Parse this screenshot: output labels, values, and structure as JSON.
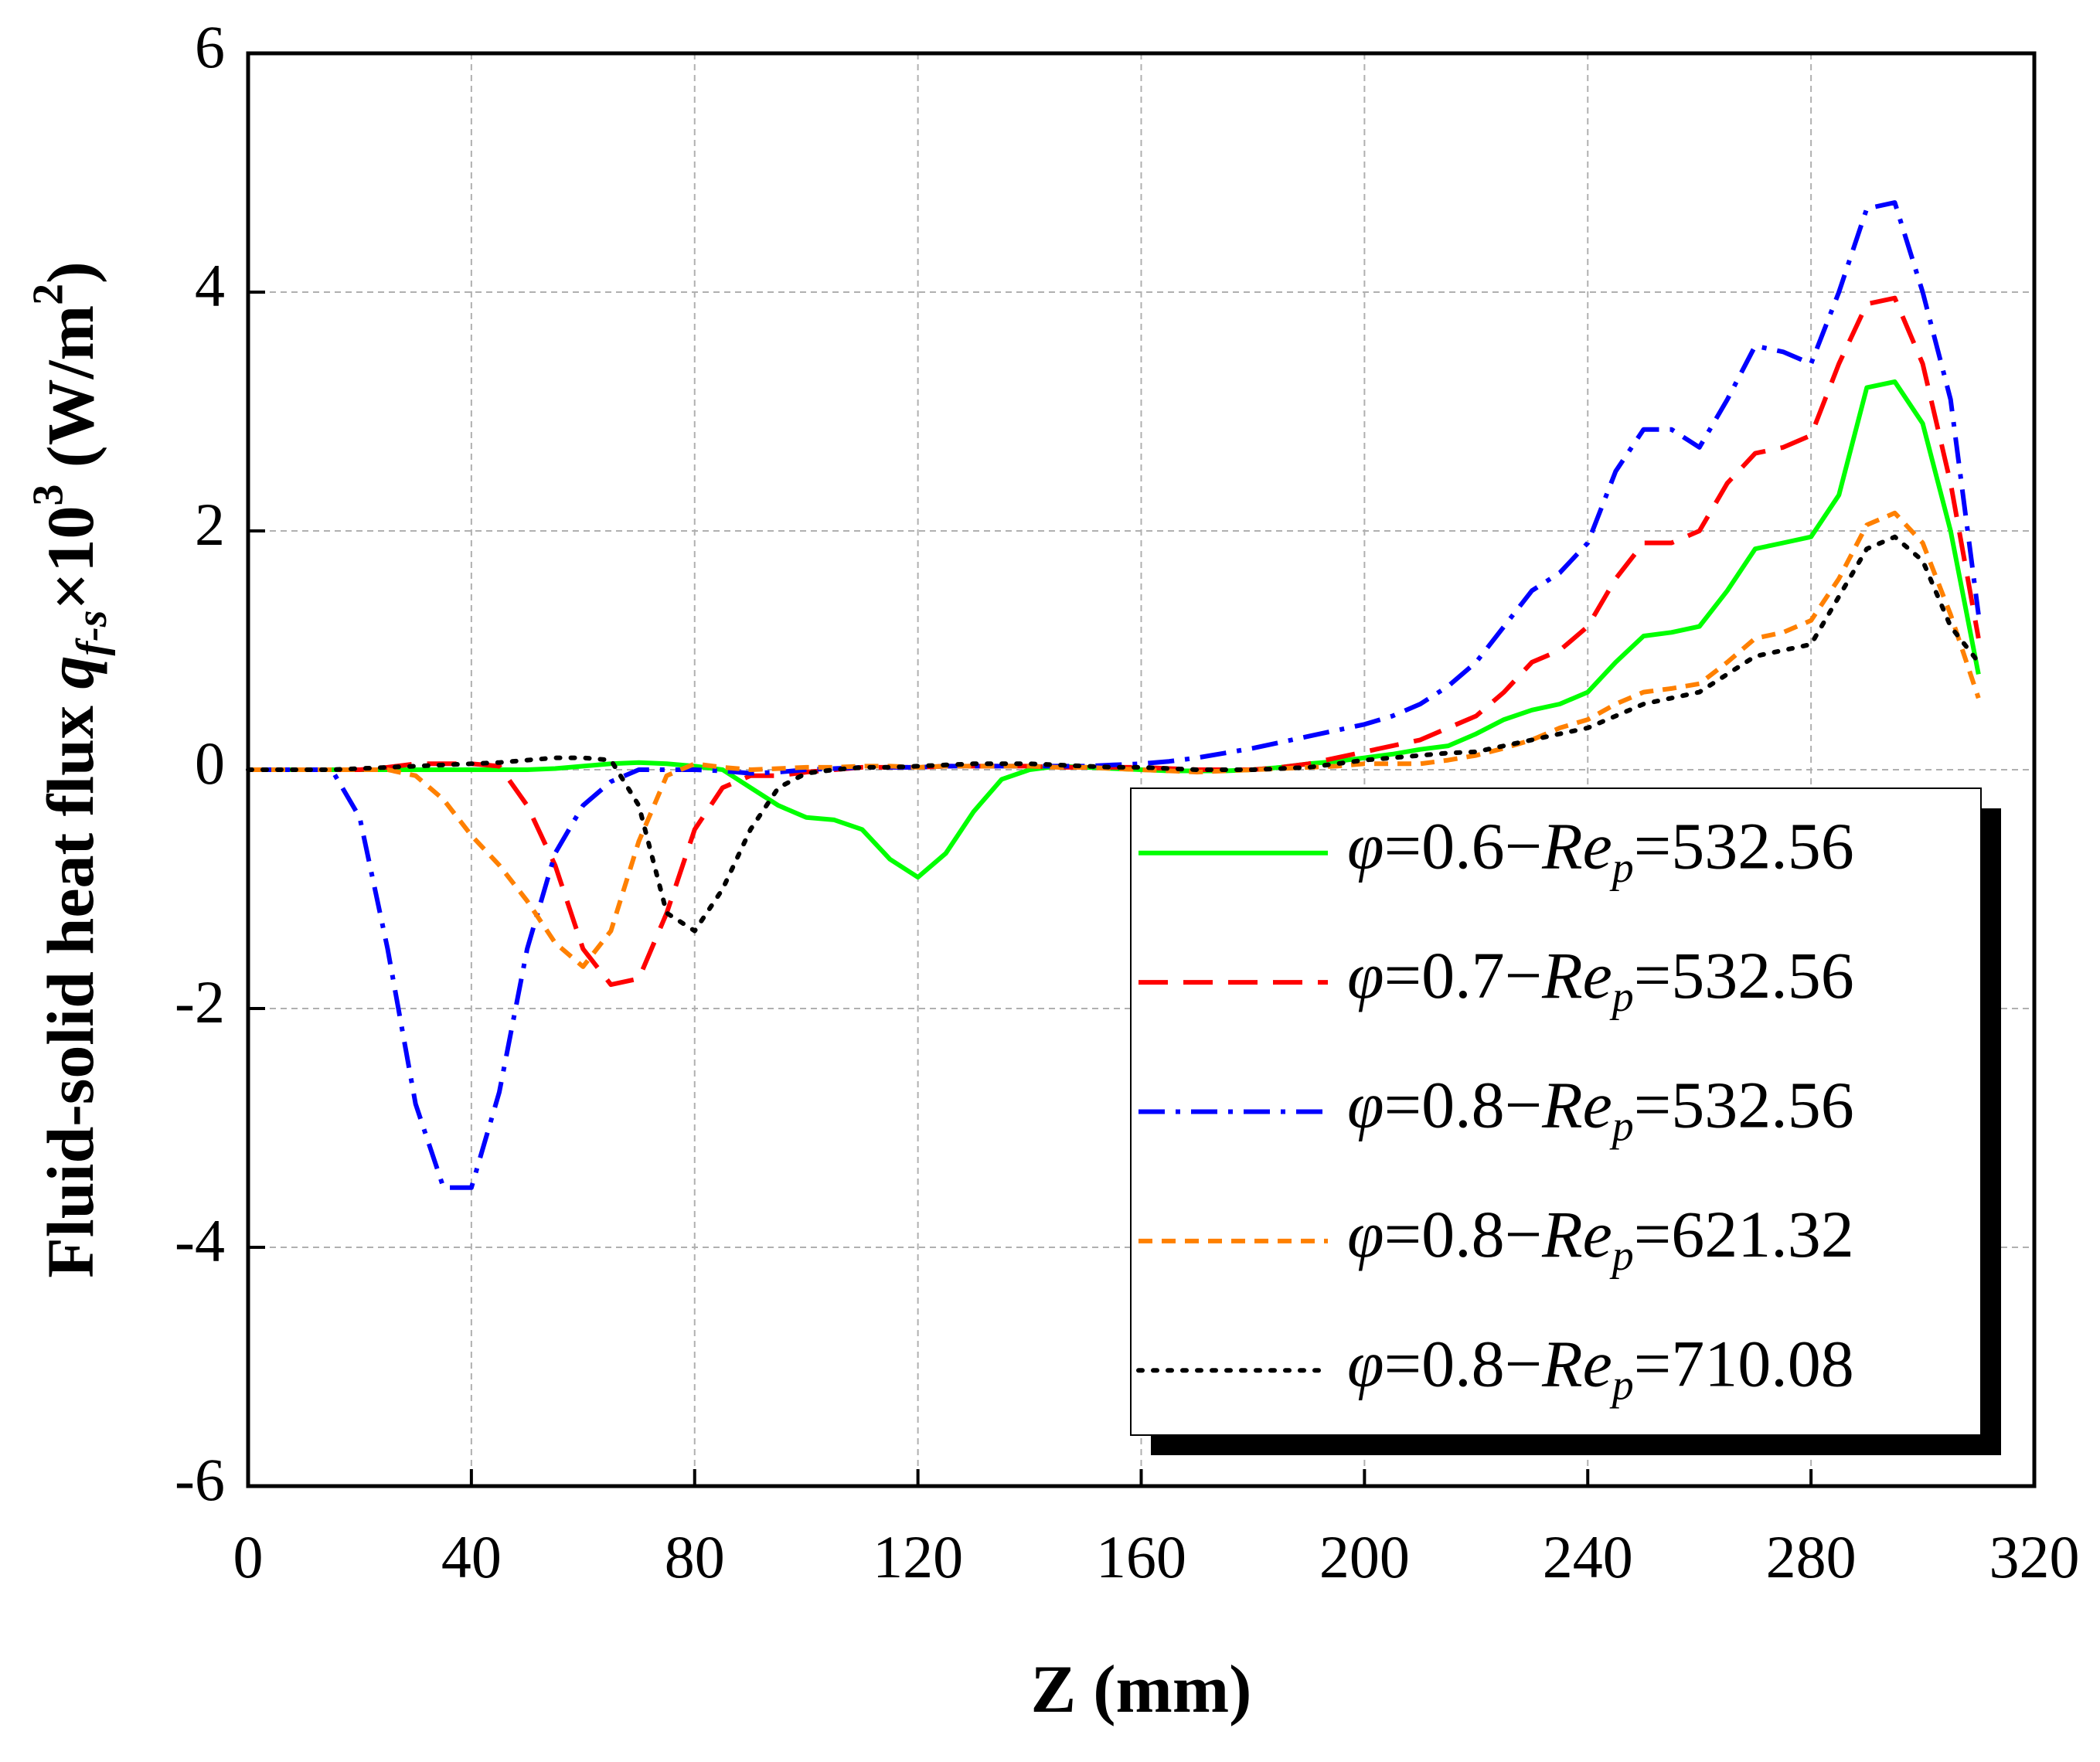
{
  "chart_data": {
    "type": "line",
    "xlabel": "Z (mm)",
    "ylabel": "Fluid-solid heat flux q_{f-s}×10^{3} (W/m^{2})",
    "x": [
      0,
      5,
      10,
      15,
      20,
      25,
      30,
      35,
      40,
      45,
      50,
      55,
      60,
      65,
      70,
      75,
      80,
      85,
      90,
      95,
      100,
      105,
      110,
      115,
      120,
      125,
      130,
      135,
      140,
      145,
      150,
      155,
      160,
      165,
      170,
      175,
      180,
      185,
      190,
      195,
      200,
      205,
      210,
      215,
      220,
      225,
      230,
      235,
      240,
      245,
      250,
      255,
      260,
      265,
      270,
      275,
      280,
      285,
      290,
      295,
      300,
      305,
      310
    ],
    "series": [
      {
        "name": "φ=0.6−Re_{p}=532.56",
        "color": "#00ff00",
        "dash": "solid",
        "values": [
          0,
          0,
          0,
          0,
          0,
          0,
          0,
          0,
          0,
          0,
          0,
          0.01,
          0.03,
          0.05,
          0.06,
          0.05,
          0.03,
          0,
          -0.15,
          -0.3,
          -0.4,
          -0.42,
          -0.5,
          -0.75,
          -0.9,
          -0.7,
          -0.35,
          -0.08,
          0,
          0.03,
          0.02,
          0.01,
          0,
          -0.01,
          -0.01,
          -0.01,
          0,
          0.02,
          0.05,
          0.07,
          0.1,
          0.13,
          0.17,
          0.2,
          0.3,
          0.42,
          0.5,
          0.55,
          0.65,
          0.9,
          1.12,
          1.15,
          1.2,
          1.5,
          1.85,
          1.9,
          1.95,
          2.3,
          3.2,
          3.25,
          2.9,
          2.0,
          0.8
        ]
      },
      {
        "name": "φ=0.7−Re_{p}=532.56",
        "color": "#ff0000",
        "dash": "dash",
        "values": [
          0,
          0,
          0,
          0,
          0,
          0.02,
          0.05,
          0.05,
          0.05,
          0.03,
          -0.3,
          -0.8,
          -1.5,
          -1.8,
          -1.75,
          -1.2,
          -0.5,
          -0.15,
          -0.05,
          -0.05,
          -0.02,
          0,
          0.02,
          0.02,
          0.02,
          0.03,
          0.03,
          0.03,
          0.03,
          0.02,
          0.02,
          0.02,
          0.02,
          0.01,
          0,
          0,
          0,
          0.02,
          0.05,
          0.1,
          0.15,
          0.2,
          0.25,
          0.35,
          0.45,
          0.65,
          0.9,
          1.0,
          1.2,
          1.6,
          1.9,
          1.9,
          2.0,
          2.4,
          2.65,
          2.7,
          2.8,
          3.4,
          3.9,
          3.95,
          3.4,
          2.4,
          1.1
        ]
      },
      {
        "name": "φ=0.8−Re_{p}=532.56",
        "color": "#0000ff",
        "dash": "dashdot",
        "values": [
          0,
          0,
          0,
          0,
          -0.4,
          -1.5,
          -2.8,
          -3.5,
          -3.5,
          -2.7,
          -1.5,
          -0.7,
          -0.3,
          -0.1,
          0,
          0,
          0,
          -0.01,
          -0.03,
          -0.02,
          0,
          0.01,
          0.02,
          0.02,
          0.02,
          0.03,
          0.03,
          0.03,
          0.03,
          0.03,
          0.03,
          0.04,
          0.05,
          0.07,
          0.1,
          0.14,
          0.18,
          0.23,
          0.28,
          0.33,
          0.38,
          0.45,
          0.55,
          0.7,
          0.9,
          1.2,
          1.5,
          1.65,
          1.9,
          2.5,
          2.85,
          2.85,
          2.7,
          3.1,
          3.55,
          3.5,
          3.4,
          4.0,
          4.7,
          4.75,
          4.0,
          3.1,
          1.3
        ]
      },
      {
        "name": "φ=0.8−Re_{p}=621.32",
        "color": "#ff8000",
        "dash": "shortdash",
        "values": [
          0,
          0,
          0,
          0,
          0,
          0,
          -0.05,
          -0.25,
          -0.55,
          -0.8,
          -1.1,
          -1.45,
          -1.65,
          -1.35,
          -0.6,
          -0.05,
          0.05,
          0.02,
          0,
          0.01,
          0.02,
          0.02,
          0.03,
          0.03,
          0.02,
          0.03,
          0.03,
          0.03,
          0.03,
          0.02,
          0.02,
          0.01,
          0,
          -0.01,
          -0.02,
          -0.01,
          0,
          0.01,
          0.02,
          0.03,
          0.05,
          0.05,
          0.05,
          0.08,
          0.12,
          0.18,
          0.25,
          0.35,
          0.42,
          0.55,
          0.65,
          0.68,
          0.72,
          0.9,
          1.1,
          1.15,
          1.25,
          1.6,
          2.05,
          2.15,
          1.9,
          1.3,
          0.6
        ]
      },
      {
        "name": "φ=0.8−Re_{p}=710.08",
        "color": "#000000",
        "dash": "dot",
        "values": [
          0,
          0,
          0,
          0,
          0.01,
          0.02,
          0.03,
          0.04,
          0.05,
          0.06,
          0.08,
          0.1,
          0.1,
          0.08,
          -0.3,
          -1.2,
          -1.35,
          -1.0,
          -0.5,
          -0.15,
          -0.03,
          0,
          0.02,
          0.02,
          0.03,
          0.04,
          0.05,
          0.05,
          0.05,
          0.04,
          0.03,
          0.02,
          0.02,
          0.01,
          0,
          0,
          0,
          0.01,
          0.02,
          0.05,
          0.08,
          0.1,
          0.12,
          0.14,
          0.15,
          0.2,
          0.25,
          0.3,
          0.35,
          0.45,
          0.55,
          0.6,
          0.65,
          0.8,
          0.95,
          1.0,
          1.05,
          1.45,
          1.85,
          1.95,
          1.75,
          1.2,
          0.9
        ]
      }
    ],
    "xlim": [
      0,
      320
    ],
    "xticks": [
      0,
      40,
      80,
      120,
      160,
      200,
      240,
      280,
      320
    ],
    "ylim": [
      -6,
      6
    ],
    "yticks": [
      -6,
      -4,
      -2,
      0,
      2,
      4,
      6
    ],
    "grid": true,
    "legend": "lower-right"
  }
}
